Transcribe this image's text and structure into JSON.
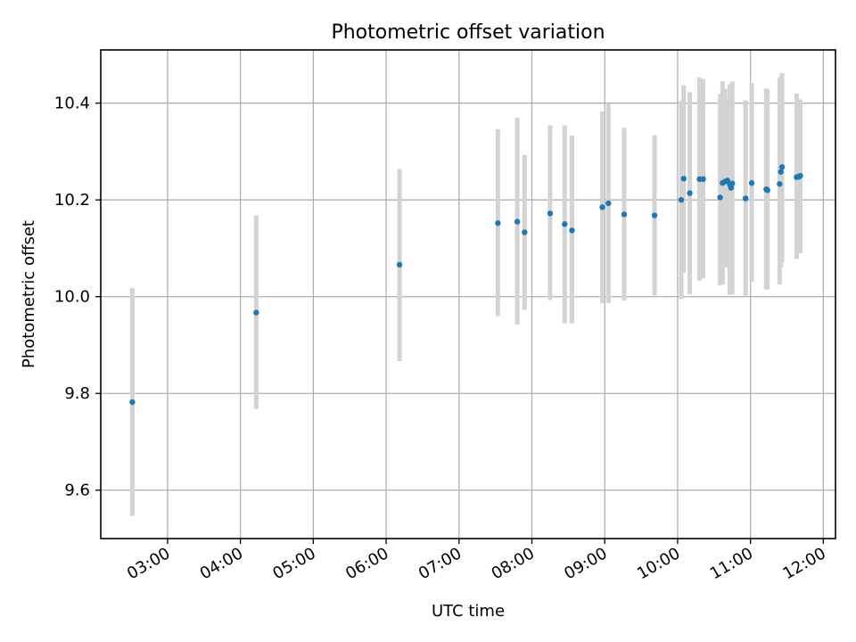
{
  "chart_data": {
    "type": "scatter",
    "title": "Photometric offset variation",
    "xlabel": "UTC time",
    "ylabel": "Photometric offset",
    "xlim": [
      "02:05",
      "12:10"
    ],
    "ylim": [
      9.5,
      10.51
    ],
    "x_ticks": [
      "03:00",
      "04:00",
      "05:00",
      "06:00",
      "07:00",
      "08:00",
      "09:00",
      "10:00",
      "11:00",
      "12:00"
    ],
    "y_ticks": [
      9.6,
      9.8,
      10.0,
      10.2,
      10.4
    ],
    "grid": true,
    "marker_color": "#1f77b4",
    "errorbar_color": "#d3d3d3",
    "series": [
      {
        "points": [
          {
            "x": "02:31",
            "y": 9.782,
            "lo": 9.547,
            "hi": 10.018
          },
          {
            "x": "04:13",
            "y": 9.967,
            "lo": 9.768,
            "hi": 10.168
          },
          {
            "x": "06:11",
            "y": 10.066,
            "lo": 9.867,
            "hi": 10.264
          },
          {
            "x": "07:32",
            "y": 10.152,
            "lo": 9.96,
            "hi": 10.346
          },
          {
            "x": "07:48",
            "y": 10.155,
            "lo": 9.942,
            "hi": 10.37
          },
          {
            "x": "07:54",
            "y": 10.133,
            "lo": 9.973,
            "hi": 10.293
          },
          {
            "x": "08:15",
            "y": 10.172,
            "lo": 9.993,
            "hi": 10.354
          },
          {
            "x": "08:27",
            "y": 10.15,
            "lo": 9.945,
            "hi": 10.354
          },
          {
            "x": "08:33",
            "y": 10.137,
            "lo": 9.945,
            "hi": 10.333
          },
          {
            "x": "08:58",
            "y": 10.185,
            "lo": 9.987,
            "hi": 10.383
          },
          {
            "x": "09:03",
            "y": 10.193,
            "lo": 9.987,
            "hi": 10.398
          },
          {
            "x": "09:16",
            "y": 10.17,
            "lo": 9.992,
            "hi": 10.349
          },
          {
            "x": "09:41",
            "y": 10.168,
            "lo": 10.003,
            "hi": 10.334
          },
          {
            "x": "10:03",
            "y": 10.2,
            "lo": 9.995,
            "hi": 10.405
          },
          {
            "x": "10:05",
            "y": 10.244,
            "lo": 10.05,
            "hi": 10.437
          },
          {
            "x": "10:10",
            "y": 10.214,
            "lo": 10.005,
            "hi": 10.423
          },
          {
            "x": "10:18",
            "y": 10.243,
            "lo": 10.033,
            "hi": 10.453
          },
          {
            "x": "10:21",
            "y": 10.243,
            "lo": 10.038,
            "hi": 10.45
          },
          {
            "x": "10:35",
            "y": 10.205,
            "lo": 10.024,
            "hi": 10.419
          },
          {
            "x": "10:37",
            "y": 10.235,
            "lo": 10.025,
            "hi": 10.445
          },
          {
            "x": "10:39",
            "y": 10.238,
            "lo": 10.06,
            "hi": 10.43
          },
          {
            "x": "10:41",
            "y": 10.24,
            "lo": 10.06,
            "hi": 10.41
          },
          {
            "x": "10:43",
            "y": 10.232,
            "lo": 10.004,
            "hi": 10.438
          },
          {
            "x": "10:44",
            "y": 10.225,
            "lo": 10.01,
            "hi": 10.44
          },
          {
            "x": "10:45",
            "y": 10.234,
            "lo": 10.005,
            "hi": 10.445
          },
          {
            "x": "10:56",
            "y": 10.203,
            "lo": 10.002,
            "hi": 10.406
          },
          {
            "x": "11:01",
            "y": 10.235,
            "lo": 10.03,
            "hi": 10.442
          },
          {
            "x": "11:13",
            "y": 10.222,
            "lo": 10.015,
            "hi": 10.43
          },
          {
            "x": "11:14",
            "y": 10.22,
            "lo": 10.015,
            "hi": 10.428
          },
          {
            "x": "11:24",
            "y": 10.233,
            "lo": 10.025,
            "hi": 10.45
          },
          {
            "x": "11:25",
            "y": 10.258,
            "lo": 10.06,
            "hi": 10.455
          },
          {
            "x": "11:26",
            "y": 10.268,
            "lo": 10.07,
            "hi": 10.462
          },
          {
            "x": "11:38",
            "y": 10.247,
            "lo": 10.078,
            "hi": 10.42
          },
          {
            "x": "11:40",
            "y": 10.248,
            "lo": 10.09,
            "hi": 10.408
          },
          {
            "x": "11:41",
            "y": 10.25,
            "lo": 10.09,
            "hi": 10.407
          }
        ]
      }
    ]
  }
}
